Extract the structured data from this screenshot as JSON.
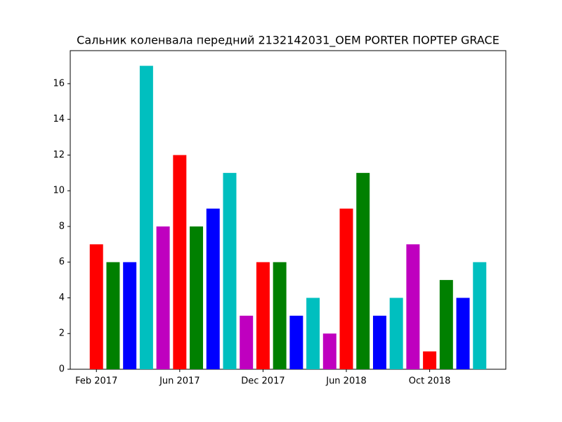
{
  "chart_data": {
    "type": "bar",
    "title": "Сальник коленвала передний 2132142031_OEM PORTER ПОРТЕР GRACE",
    "categories": [
      "Feb 2017",
      null,
      null,
      null,
      null,
      "Jun 2017",
      null,
      null,
      null,
      null,
      "Dec 2017",
      null,
      null,
      null,
      null,
      "Jun 2018",
      null,
      null,
      null,
      null,
      "Oct 2018",
      null,
      null,
      null
    ],
    "values": [
      7,
      6,
      6,
      17,
      8,
      12,
      8,
      9,
      11,
      3,
      6,
      6,
      3,
      4,
      2,
      9,
      11,
      3,
      4,
      7,
      1,
      5,
      4,
      6
    ],
    "colors": [
      "#ff0000",
      "#008000",
      "#0000ff",
      "#00bfbf",
      "#bf00bf"
    ],
    "ylim": [
      0,
      17.85
    ],
    "yticks": [
      0,
      2,
      4,
      6,
      8,
      10,
      12,
      14,
      16
    ]
  }
}
